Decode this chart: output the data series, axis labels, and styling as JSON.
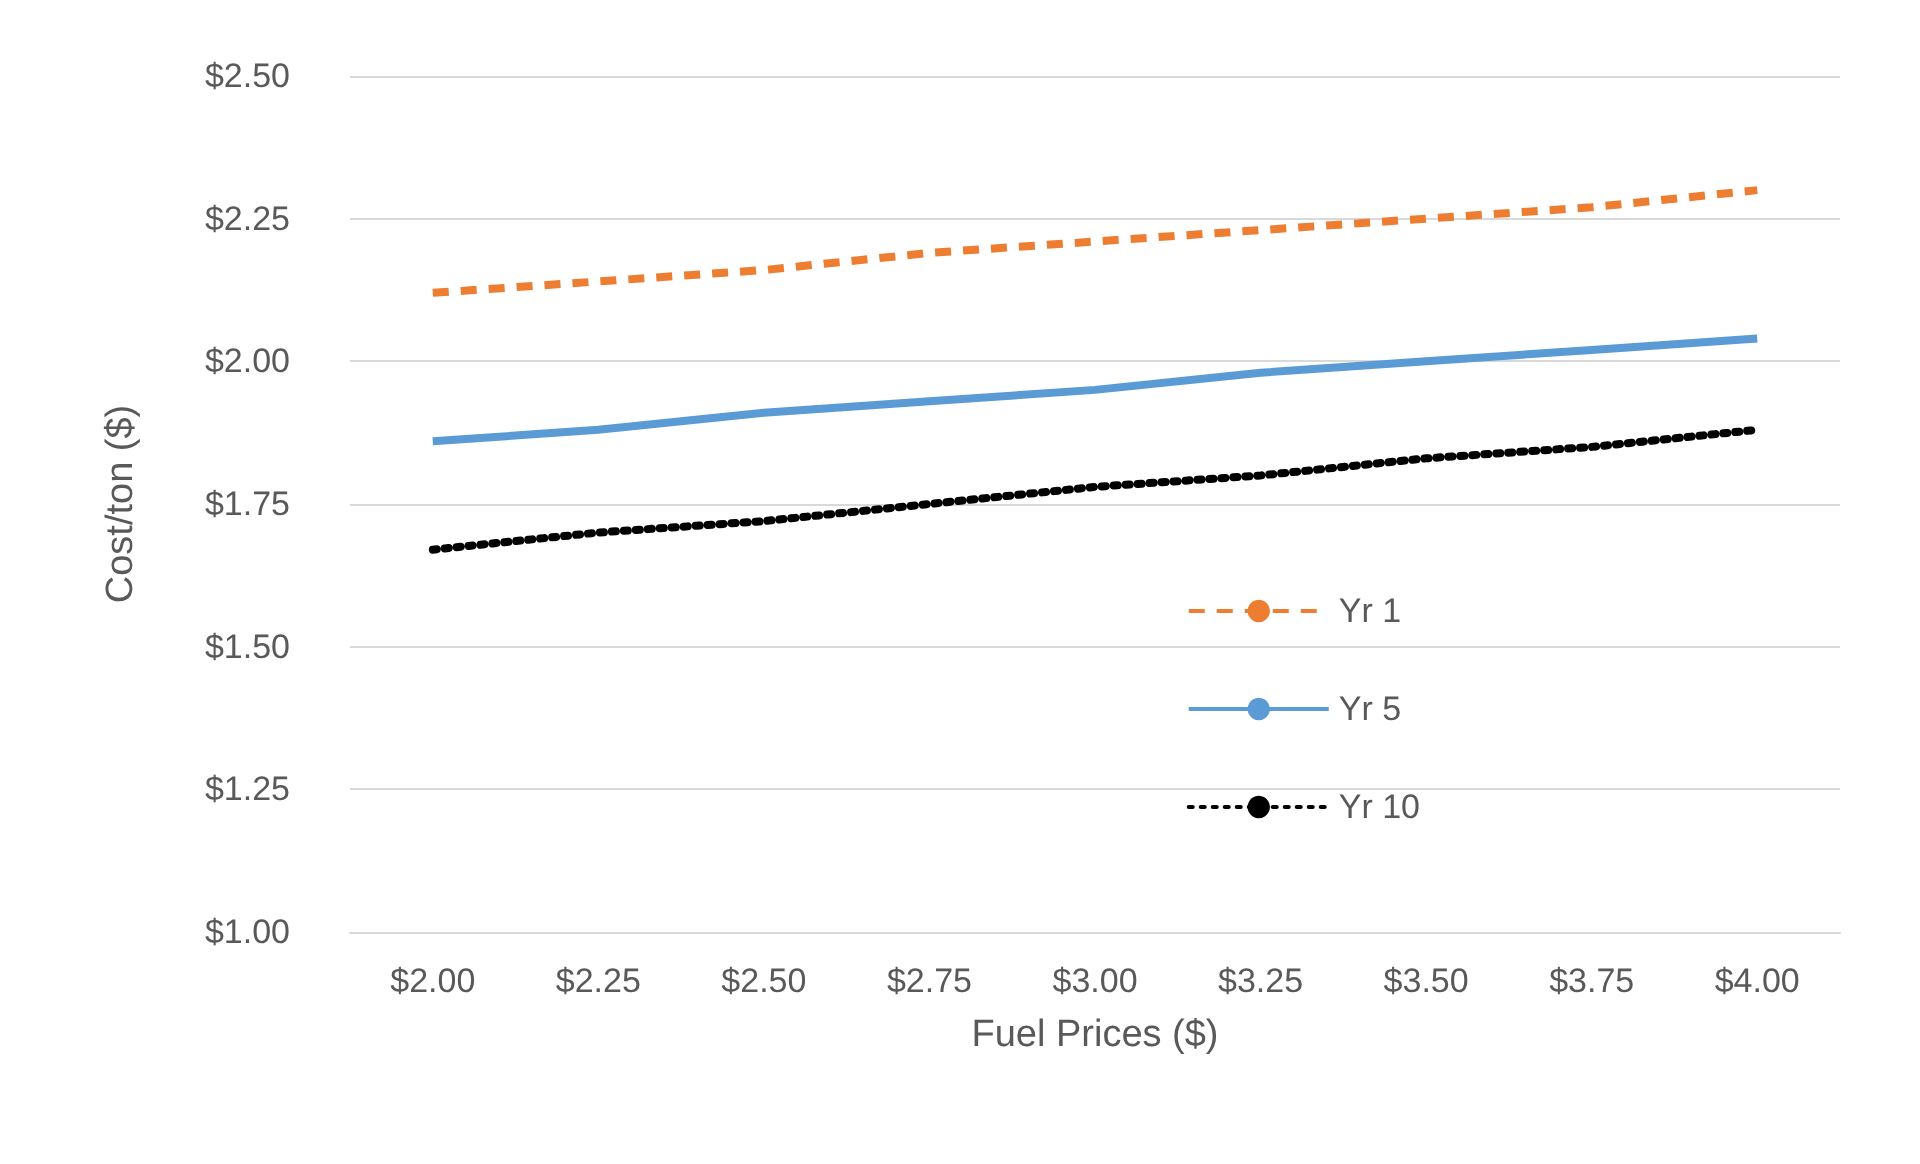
{
  "chart_data": {
    "type": "line",
    "xlabel": "Fuel Prices ($)",
    "ylabel": "Cost/ton ($)",
    "categories": [
      "$2.00",
      "$2.25",
      "$2.50",
      "$2.75",
      "$3.00",
      "$3.25",
      "$3.50",
      "$3.75",
      "$4.00"
    ],
    "series": [
      {
        "name": "Yr 1",
        "color": "#ed7d31",
        "line_style": "dashed",
        "values": [
          2.12,
          2.14,
          2.16,
          2.19,
          2.21,
          2.23,
          2.25,
          2.27,
          2.3
        ]
      },
      {
        "name": "Yr 5",
        "color": "#5b9bd5",
        "line_style": "solid",
        "values": [
          1.86,
          1.88,
          1.91,
          1.93,
          1.95,
          1.98,
          2.0,
          2.02,
          2.04
        ]
      },
      {
        "name": "Yr 10",
        "color": "#000000",
        "line_style": "dotted",
        "values": [
          1.67,
          1.7,
          1.72,
          1.75,
          1.78,
          1.8,
          1.83,
          1.85,
          1.88
        ]
      }
    ],
    "ylim": [
      1,
      2.5
    ],
    "yticks": [
      {
        "value": 1,
        "label": "$1.00"
      },
      {
        "value": 1.25,
        "label": "$1.25"
      },
      {
        "value": 1.5,
        "label": "$1.50"
      },
      {
        "value": 1.75,
        "label": "$1.75"
      },
      {
        "value": 2,
        "label": "$2.00"
      },
      {
        "value": 2.25,
        "label": "$2.25"
      },
      {
        "value": 2.5,
        "label": "$2.50"
      }
    ],
    "grid": "y",
    "legend": "bottom right",
    "marker": "none"
  }
}
